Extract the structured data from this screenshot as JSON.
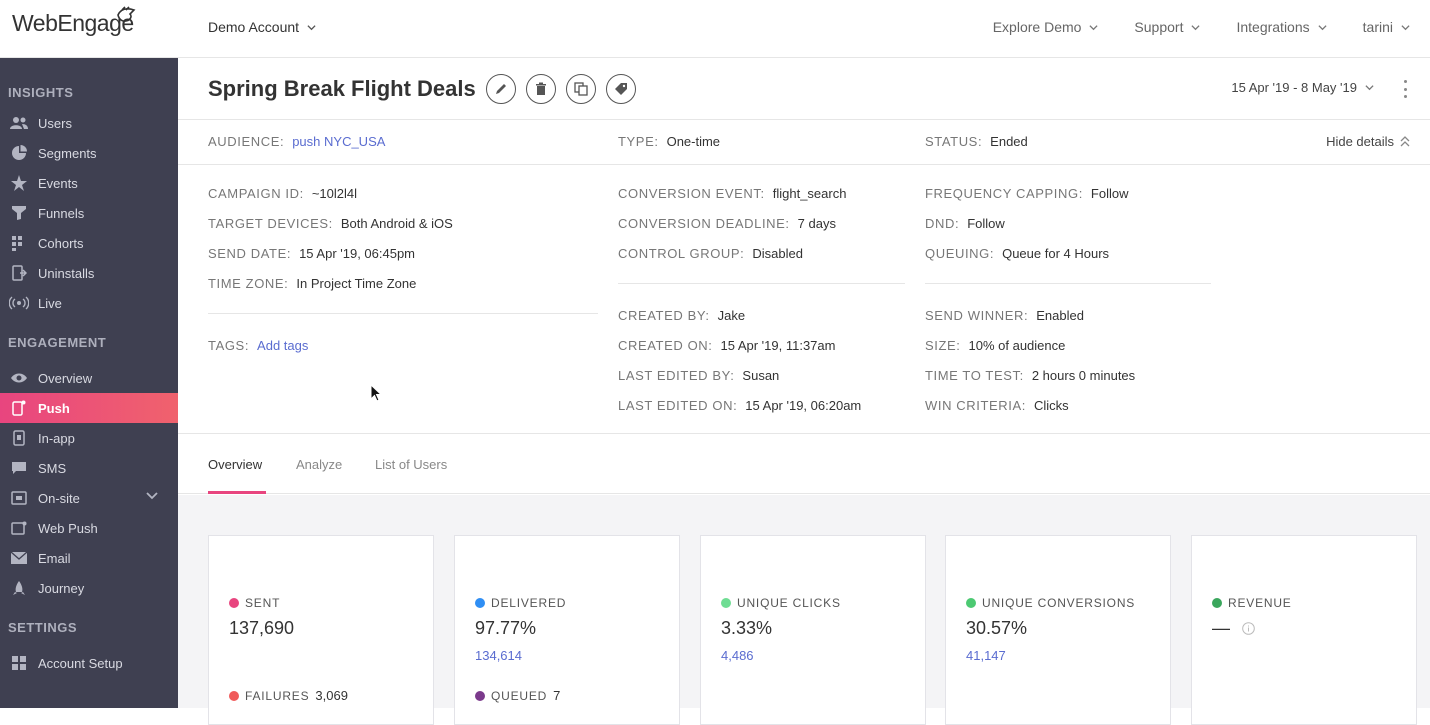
{
  "brand": {
    "logo_text": "WebEngage"
  },
  "topbar": {
    "account": "Demo Account",
    "nav": [
      "Explore Demo",
      "Support",
      "Integrations",
      "tarini"
    ]
  },
  "sidebar": {
    "sections": [
      {
        "title": "INSIGHTS",
        "items": [
          {
            "label": "Users",
            "icon": "users-icon"
          },
          {
            "label": "Segments",
            "icon": "pie-icon"
          },
          {
            "label": "Events",
            "icon": "star-icon"
          },
          {
            "label": "Funnels",
            "icon": "funnel-icon"
          },
          {
            "label": "Cohorts",
            "icon": "grid-icon"
          },
          {
            "label": "Uninstalls",
            "icon": "uninstall-icon"
          },
          {
            "label": "Live",
            "icon": "live-icon"
          }
        ]
      },
      {
        "title": "ENGAGEMENT",
        "items": [
          {
            "label": "Overview",
            "icon": "eye-icon"
          },
          {
            "label": "Push",
            "icon": "push-icon",
            "active": true
          },
          {
            "label": "In-app",
            "icon": "inapp-icon"
          },
          {
            "label": "SMS",
            "icon": "sms-icon"
          },
          {
            "label": "On-site",
            "icon": "onsite-icon",
            "expandable": true
          },
          {
            "label": "Web Push",
            "icon": "webpush-icon"
          },
          {
            "label": "Email",
            "icon": "email-icon"
          },
          {
            "label": "Journey",
            "icon": "journey-icon"
          }
        ]
      },
      {
        "title": "SETTINGS",
        "items": [
          {
            "label": "Account Setup",
            "icon": "setup-icon"
          }
        ]
      }
    ]
  },
  "campaign": {
    "title": "Spring Break Flight Deals",
    "date_range": "15 Apr '19 - 8 May '19",
    "hide_details": "Hide details",
    "summary": {
      "audience": {
        "key": "AUDIENCE:",
        "value": "push NYC_USA"
      },
      "type": {
        "key": "TYPE:",
        "value": "One-time"
      },
      "status": {
        "key": "STATUS:",
        "value": "Ended"
      }
    },
    "col1": [
      {
        "key": "CAMPAIGN ID:",
        "value": "~10l2l4l"
      },
      {
        "key": "TARGET DEVICES:",
        "value": "Both Android & iOS"
      },
      {
        "key": "SEND DATE:",
        "value": "15 Apr '19, 06:45pm"
      },
      {
        "key": "TIME ZONE:",
        "value": "In Project Time Zone"
      }
    ],
    "tags": {
      "key": "TAGS:",
      "value": "Add tags"
    },
    "col2a": [
      {
        "key": "CONVERSION EVENT:",
        "value": "flight_search"
      },
      {
        "key": "CONVERSION DEADLINE:",
        "value": "7 days"
      },
      {
        "key": "CONTROL GROUP:",
        "value": "Disabled"
      }
    ],
    "col2b": [
      {
        "key": "CREATED BY:",
        "value": "Jake"
      },
      {
        "key": "CREATED ON:",
        "value": "15 Apr '19, 11:37am"
      },
      {
        "key": "LAST EDITED BY:",
        "value": "Susan"
      },
      {
        "key": "LAST EDITED ON:",
        "value": "15 Apr '19, 06:20am"
      }
    ],
    "col3a": [
      {
        "key": "FREQUENCY CAPPING:",
        "value": "Follow"
      },
      {
        "key": "DND:",
        "value": "Follow"
      },
      {
        "key": "QUEUING:",
        "value": "Queue for 4 Hours"
      }
    ],
    "col3b": [
      {
        "key": "SEND WINNER:",
        "value": "Enabled"
      },
      {
        "key": "SIZE:",
        "value": "10% of audience"
      },
      {
        "key": "TIME TO TEST:",
        "value": "2 hours 0 minutes"
      },
      {
        "key": "WIN CRITERIA:",
        "value": "Clicks"
      }
    ]
  },
  "tabs": [
    "Overview",
    "Analyze",
    "List of Users"
  ],
  "stats": [
    {
      "label": "SENT",
      "value": "137,690",
      "sub": "",
      "color": "#e8457f",
      "foot_label": "FAILURES",
      "foot_value": "3,069",
      "foot_color": "#f05a5a"
    },
    {
      "label": "DELIVERED",
      "value": "97.77%",
      "sub": "134,614",
      "color": "#2f8ef4",
      "foot_label": "QUEUED",
      "foot_value": "7",
      "foot_color": "#7b3a8c"
    },
    {
      "label": "UNIQUE CLICKS",
      "value": "3.33%",
      "sub": "4,486",
      "color": "#6fdd93",
      "foot_label": "",
      "foot_value": "",
      "foot_color": ""
    },
    {
      "label": "UNIQUE CONVERSIONS",
      "value": "30.57%",
      "sub": "41,147",
      "color": "#4cc972",
      "foot_label": "",
      "foot_value": "",
      "foot_color": ""
    },
    {
      "label": "REVENUE",
      "value": "—",
      "sub": "",
      "color": "#3aa65c",
      "foot_label": "",
      "foot_value": "",
      "foot_color": ""
    }
  ]
}
